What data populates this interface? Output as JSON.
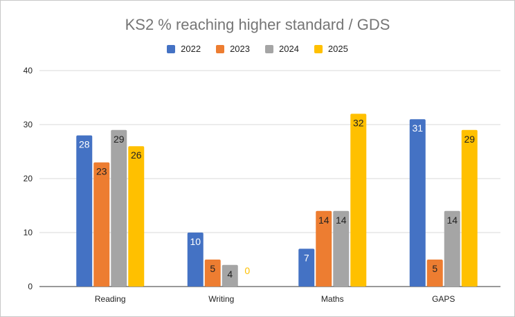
{
  "chart_data": {
    "type": "bar",
    "title": "KS2 % reaching higher standard / GDS",
    "categories": [
      "Reading",
      "Writing",
      "Maths",
      "GAPS"
    ],
    "series": [
      {
        "name": "2022",
        "values": [
          28,
          10,
          7,
          31
        ],
        "color": "#4472c4",
        "label_color": "#ffffff"
      },
      {
        "name": "2023",
        "values": [
          23,
          5,
          14,
          5
        ],
        "color": "#ed7d31",
        "label_color": "#222222"
      },
      {
        "name": "2024",
        "values": [
          29,
          4,
          14,
          14
        ],
        "color": "#a5a5a5",
        "label_color": "#222222"
      },
      {
        "name": "2025",
        "values": [
          26,
          0,
          32,
          29
        ],
        "color": "#ffc000",
        "label_color": "#222222",
        "zero_label_color": "#ffc000"
      }
    ],
    "ylim": [
      0,
      40
    ],
    "yticks": [
      0,
      10,
      20,
      30,
      40
    ],
    "grid": true,
    "legend_position": "top",
    "xlabel": "",
    "ylabel": ""
  }
}
